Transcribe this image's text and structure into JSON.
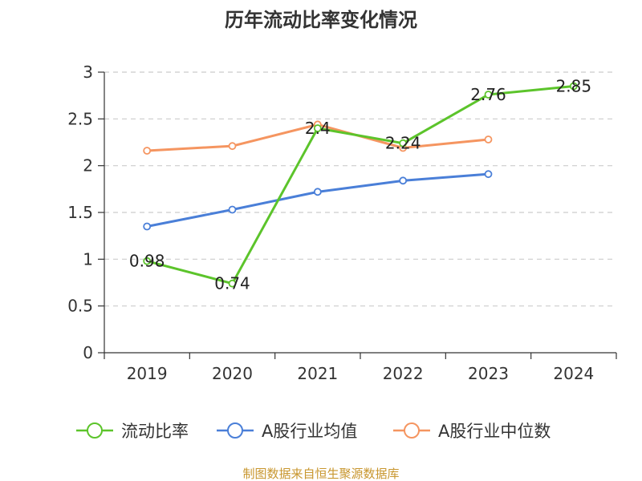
{
  "chart_data": {
    "type": "line",
    "title": "历年流动比率变化情况",
    "categories": [
      "2019",
      "2020",
      "2021",
      "2022",
      "2023",
      "2024"
    ],
    "ylim": [
      0,
      3
    ],
    "yticks": [
      "0",
      "0.5",
      "1",
      "1.5",
      "2",
      "2.5",
      "3"
    ],
    "grid": true,
    "legend_position": "bottom",
    "series": [
      {
        "name": "流动比率",
        "color": "#5cc42b",
        "values": [
          0.98,
          0.74,
          2.4,
          2.24,
          2.76,
          2.85
        ],
        "labels": [
          "0.98",
          "0.74",
          "2.4",
          "2.24",
          "2.76",
          "2.85"
        ]
      },
      {
        "name": "A股行业均值",
        "color": "#4a7fd8",
        "values": [
          1.35,
          1.53,
          1.72,
          1.84,
          1.91,
          null
        ]
      },
      {
        "name": "A股行业中位数",
        "color": "#f59560",
        "values": [
          2.16,
          2.21,
          2.44,
          2.19,
          2.28,
          null
        ]
      }
    ],
    "source_note": "制图数据来自恒生聚源数据库"
  }
}
